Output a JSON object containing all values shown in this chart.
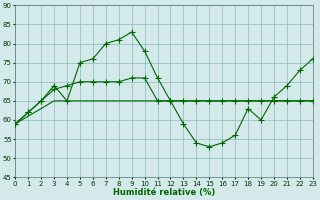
{
  "xlabel": "Humidité relative (%)",
  "bg_color": "#d4eaea",
  "grid_color": "#88bbbb",
  "line_color": "#006600",
  "xlim": [
    0,
    23
  ],
  "ylim": [
    45,
    90
  ],
  "yticks": [
    45,
    50,
    55,
    60,
    65,
    70,
    75,
    80,
    85,
    90
  ],
  "xticks": [
    0,
    1,
    2,
    3,
    4,
    5,
    6,
    7,
    8,
    9,
    10,
    11,
    12,
    13,
    14,
    15,
    16,
    17,
    18,
    19,
    20,
    21,
    22,
    23
  ],
  "line1_x": [
    0,
    1,
    2,
    3,
    4,
    5,
    6,
    7,
    8,
    9,
    10,
    11,
    12,
    13,
    14,
    15,
    16,
    17,
    18,
    19,
    20,
    21,
    22,
    23
  ],
  "line1_y": [
    59,
    62,
    65,
    69,
    65,
    75,
    76,
    80,
    81,
    83,
    78,
    71,
    65,
    59,
    54,
    53,
    54,
    56,
    63,
    60,
    66,
    69,
    73,
    76
  ],
  "line2_x": [
    0,
    1,
    2,
    3,
    4,
    5,
    6,
    7,
    8,
    9,
    10,
    11,
    12,
    13,
    14,
    15,
    16,
    17,
    18,
    19,
    20,
    21,
    22,
    23
  ],
  "line2_y": [
    59,
    62,
    65,
    68,
    69,
    70,
    70,
    70,
    70,
    71,
    71,
    65,
    65,
    65,
    65,
    65,
    65,
    65,
    65,
    65,
    65,
    65,
    65,
    65
  ],
  "line3_x": [
    0,
    3,
    10,
    14,
    23
  ],
  "line3_y": [
    59,
    65,
    65,
    65,
    65
  ]
}
